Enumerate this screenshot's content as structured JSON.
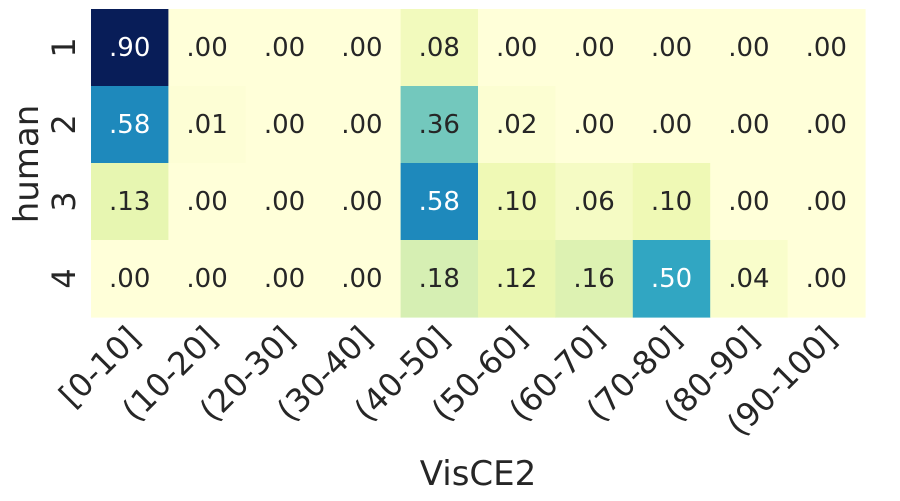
{
  "chart_data": {
    "type": "heatmap",
    "xlabel": "VisCE2",
    "ylabel": "human",
    "x_categories": [
      "[0-10]",
      "(10-20]",
      "(20-30]",
      "(30-40]",
      "(40-50]",
      "(50-60]",
      "(60-70]",
      "(70-80]",
      "(80-90]",
      "(90-100]"
    ],
    "y_categories": [
      "1",
      "2",
      "3",
      "4"
    ],
    "values": [
      [
        0.9,
        0.0,
        0.0,
        0.0,
        0.08,
        0.0,
        0.0,
        0.0,
        0.0,
        0.0
      ],
      [
        0.58,
        0.01,
        0.0,
        0.0,
        0.36,
        0.02,
        0.0,
        0.0,
        0.0,
        0.0
      ],
      [
        0.13,
        0.0,
        0.0,
        0.0,
        0.58,
        0.1,
        0.06,
        0.1,
        0.0,
        0.0
      ],
      [
        0.0,
        0.0,
        0.0,
        0.0,
        0.18,
        0.12,
        0.16,
        0.5,
        0.04,
        0.0
      ]
    ],
    "value_labels": [
      [
        ".90",
        ".00",
        ".00",
        ".00",
        ".08",
        ".00",
        ".00",
        ".00",
        ".00",
        ".00"
      ],
      [
        ".58",
        ".01",
        ".00",
        ".00",
        ".36",
        ".02",
        ".00",
        ".00",
        ".00",
        ".00"
      ],
      [
        ".13",
        ".00",
        ".00",
        ".00",
        ".58",
        ".10",
        ".06",
        ".10",
        ".00",
        ".00"
      ],
      [
        ".00",
        ".00",
        ".00",
        ".00",
        ".18",
        ".12",
        ".16",
        ".50",
        ".04",
        ".00"
      ]
    ],
    "colormap": "YlGnBu",
    "value_range": [
      0,
      0.9
    ],
    "colorbar": false,
    "grid": false
  }
}
